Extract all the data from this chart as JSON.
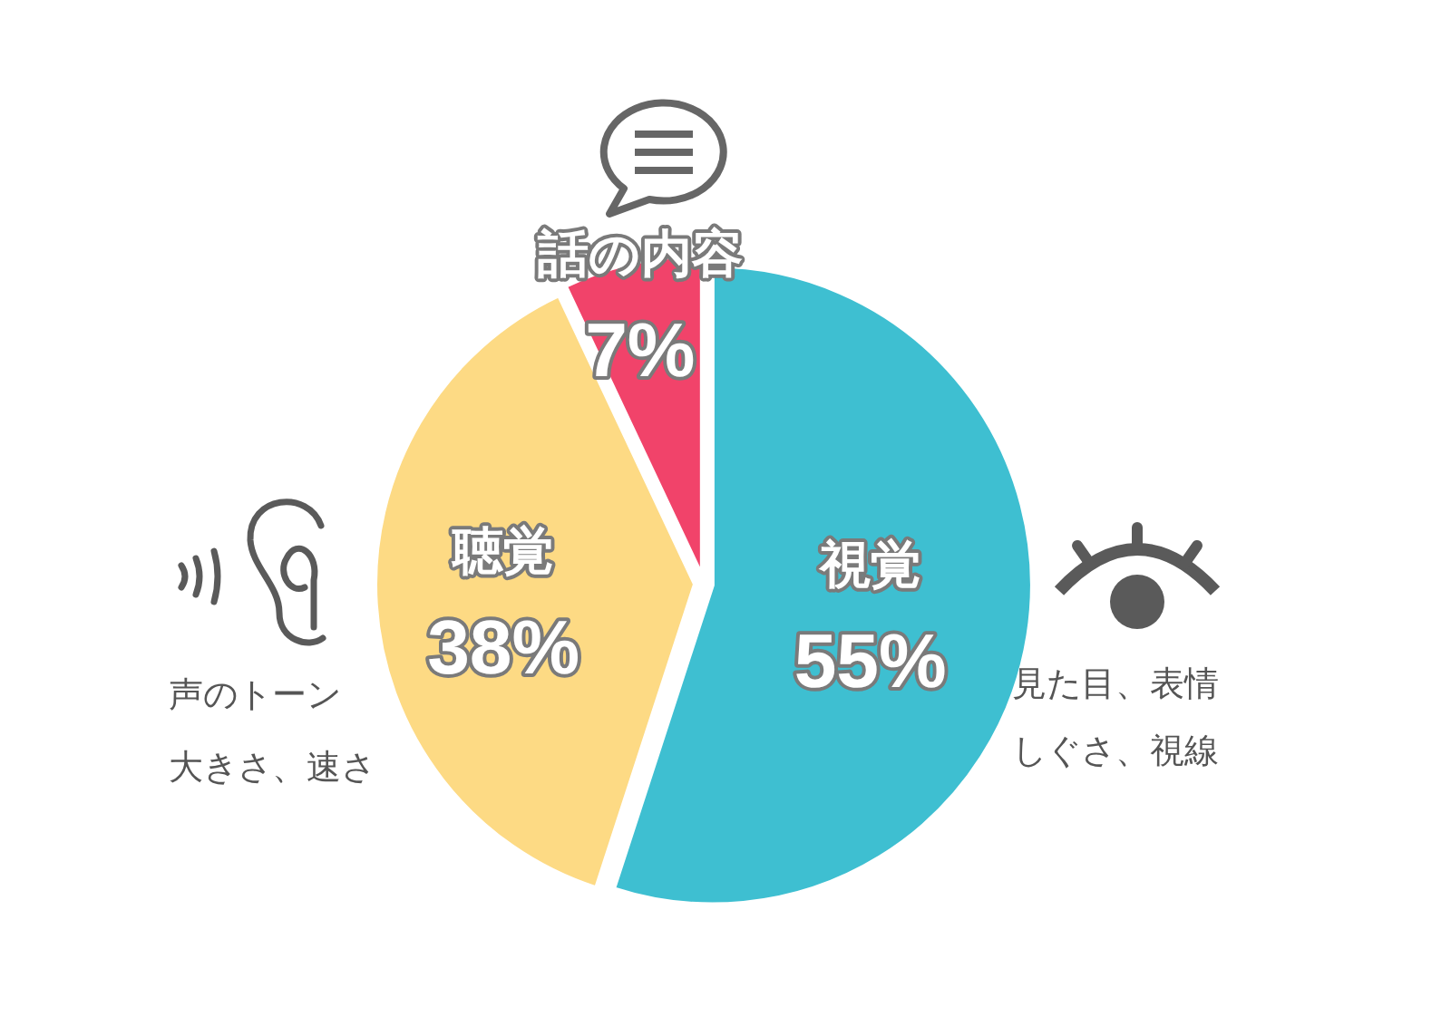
{
  "chart_data": {
    "type": "pie",
    "categories": [
      "視覚",
      "聴覚",
      "話の内容"
    ],
    "values": [
      55,
      38,
      7
    ],
    "value_labels": [
      "55%",
      "38%",
      "7%"
    ],
    "colors": [
      "#3ebfd1",
      "#fdda84",
      "#f1436a"
    ],
    "annotations": [
      "見た目、表情",
      "しぐさ、視線",
      "声のトーン",
      "大きさ、速さ"
    ]
  }
}
